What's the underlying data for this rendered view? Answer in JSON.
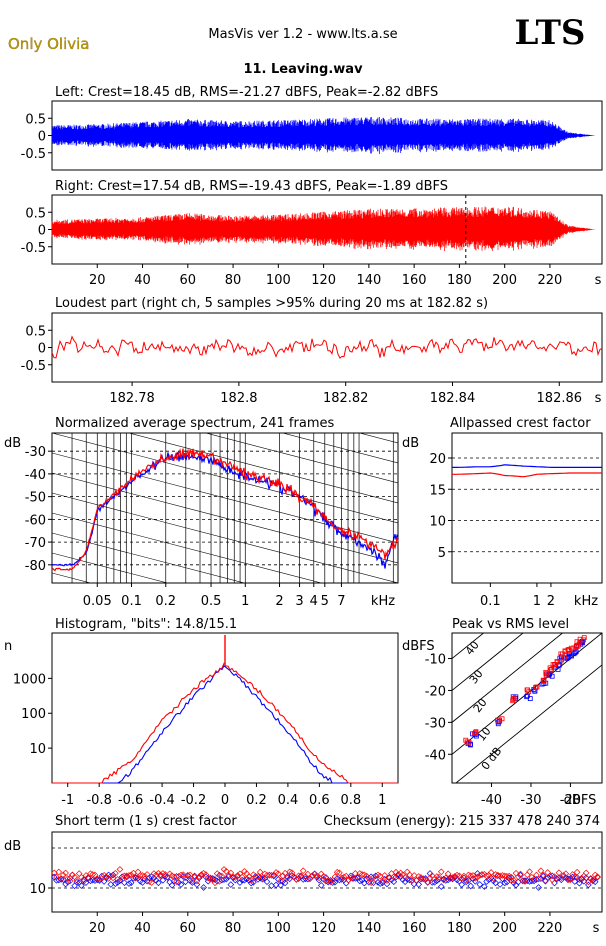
{
  "header": {
    "artist": "Only Olivia",
    "app_title": "MasVis ver 1.2 - www.lts.a.se",
    "logo": "LTS",
    "filename": "11. Leaving.wav"
  },
  "colors": {
    "left": "#0000ff",
    "right": "#ff0000",
    "artist": "#c0a000",
    "grid": "#000000"
  },
  "panels": {
    "left_wave": {
      "title": "Left: Crest=18.45 dB, RMS=-21.27 dBFS, Peak=-2.82 dBFS",
      "yticks": [
        "0.5",
        "0",
        "-0.5"
      ]
    },
    "right_wave": {
      "title": "Right: Crest=17.54 dB, RMS=-19.43 dBFS, Peak=-1.89 dBFS",
      "yticks": [
        "0.5",
        "0",
        "-0.5"
      ],
      "xticks": [
        "20",
        "40",
        "60",
        "80",
        "100",
        "120",
        "140",
        "160",
        "180",
        "200",
        "220"
      ],
      "xunit": "s"
    },
    "loudest": {
      "title": "Loudest part (right ch, 5 samples >95% during 20 ms at 182.82 s)",
      "yticks": [
        "0.5",
        "0",
        "-0.5"
      ],
      "xticks": [
        "182.78",
        "182.8",
        "182.82",
        "182.84",
        "182.86"
      ],
      "xunit": "s"
    },
    "spectrum": {
      "title": "Normalized average spectrum, 241 frames",
      "yunit": "dB",
      "yticks": [
        "-30",
        "-40",
        "-50",
        "-60",
        "-70",
        "-80"
      ],
      "xticks": [
        "0.05",
        "0.1",
        "0.2",
        "0.5",
        "1",
        "2",
        "3",
        "4",
        "5",
        "7"
      ],
      "xunit": "kHz"
    },
    "allpass": {
      "title": "Allpassed crest factor",
      "yunit": "dB",
      "yticks": [
        "20",
        "15",
        "10",
        "5"
      ],
      "xticks": [
        "0.1",
        "1",
        "2"
      ],
      "xunit": "kHz"
    },
    "histogram": {
      "title": "Histogram, \"bits\": 14.8/15.1",
      "yunit": "n",
      "yticks": [
        "1000",
        "100",
        "10"
      ],
      "xticks": [
        "-1",
        "-0.8",
        "-0.6",
        "-0.4",
        "-0.2",
        "0",
        "0.2",
        "0.4",
        "0.6",
        "0.8",
        "1"
      ]
    },
    "peakrms": {
      "title": "Peak vs RMS level",
      "yunit": "dBFS",
      "yticks": [
        "-10",
        "-20",
        "-30",
        "-40"
      ],
      "xticks": [
        "-40",
        "-30",
        "-20"
      ],
      "xunit": "dBFS",
      "diag_labels": [
        "40",
        "30",
        "20",
        "10",
        "0 dB"
      ]
    },
    "shortcrest": {
      "title": "Short term (1 s) crest factor",
      "checksum": "Checksum (energy):   215 337 478 240 374",
      "yunit": "dB",
      "yticks": [
        "10"
      ],
      "xticks": [
        "20",
        "40",
        "60",
        "80",
        "100",
        "120",
        "140",
        "160",
        "180",
        "200",
        "220"
      ],
      "xunit": "s"
    }
  },
  "chart_data": [
    {
      "type": "area",
      "title": "Left: Crest=18.45 dB, RMS=-21.27 dBFS, Peak=-2.82 dBFS",
      "x": [
        0,
        20,
        40,
        60,
        80,
        100,
        120,
        140,
        160,
        180,
        200,
        220,
        228,
        240
      ],
      "envelope": [
        0.3,
        0.33,
        0.4,
        0.48,
        0.42,
        0.45,
        0.5,
        0.55,
        0.5,
        0.48,
        0.5,
        0.45,
        0.1,
        0
      ],
      "ylim": [
        -1,
        1
      ],
      "xlim": [
        0,
        243
      ]
    },
    {
      "type": "area",
      "title": "Right: Crest=17.54 dB, RMS=-19.43 dBFS, Peak=-1.89 dBFS",
      "x": [
        0,
        20,
        40,
        60,
        80,
        100,
        120,
        140,
        160,
        180,
        200,
        220,
        228,
        240
      ],
      "envelope": [
        0.28,
        0.32,
        0.36,
        0.48,
        0.4,
        0.44,
        0.52,
        0.6,
        0.62,
        0.65,
        0.68,
        0.55,
        0.12,
        0
      ],
      "marker_x": 182.82,
      "ylim": [
        -1,
        1
      ],
      "xlim": [
        0,
        243
      ]
    },
    {
      "type": "line",
      "title": "Loudest part (right ch, 5 samples >95% during 20 ms at 182.82 s)",
      "xlim": [
        182.765,
        182.868
      ],
      "ylim": [
        -1,
        1
      ],
      "typical_amplitude": 0.3
    },
    {
      "type": "line",
      "title": "Normalized average spectrum, 241 frames",
      "x": [
        0.03,
        0.04,
        0.05,
        0.07,
        0.1,
        0.15,
        0.2,
        0.3,
        0.5,
        0.7,
        1,
        1.5,
        2,
        3,
        4,
        5,
        7,
        10,
        14,
        17,
        20
      ],
      "series": [
        {
          "name": "left",
          "values": [
            -80,
            -75,
            -56,
            -50,
            -43,
            -37,
            -33,
            -32,
            -34,
            -38,
            -41,
            -43,
            -46,
            -50,
            -55,
            -60,
            -66,
            -70,
            -75,
            -80,
            -68
          ]
        },
        {
          "name": "right",
          "values": [
            -82,
            -74,
            -55,
            -49,
            -42,
            -36,
            -33,
            -31,
            -33,
            -36,
            -40,
            -42,
            -45,
            -50,
            -54,
            -59,
            -65,
            -68,
            -72,
            -76,
            -70
          ]
        }
      ],
      "xlim": [
        0.02,
        22
      ],
      "ylim": [
        -88,
        -22
      ],
      "xscale": "log"
    },
    {
      "type": "line",
      "title": "Allpassed crest factor",
      "x": [
        0.02,
        0.05,
        0.1,
        0.2,
        0.5,
        1,
        2,
        5,
        10,
        20
      ],
      "series": [
        {
          "name": "left",
          "values": [
            18.5,
            18.6,
            18.6,
            18.9,
            18.7,
            18.6,
            18.5,
            18.5,
            18.5,
            18.5
          ]
        },
        {
          "name": "right",
          "values": [
            17.4,
            17.5,
            17.6,
            17.2,
            17.0,
            17.4,
            17.5,
            17.6,
            17.6,
            17.6
          ]
        }
      ],
      "xlim": [
        0.015,
        25
      ],
      "ylim": [
        0,
        24
      ],
      "xscale": "log"
    },
    {
      "type": "line",
      "title": "Histogram, \"bits\": 14.8/15.1",
      "x": [
        -1,
        -0.8,
        -0.6,
        -0.4,
        -0.2,
        0,
        0.2,
        0.4,
        0.6,
        0.8,
        1
      ],
      "series": [
        {
          "name": "left",
          "values": [
            0,
            0,
            2,
            30,
            300,
            2500,
            300,
            30,
            2,
            0,
            0
          ]
        },
        {
          "name": "right",
          "values": [
            0,
            1,
            4,
            60,
            500,
            2500,
            500,
            60,
            4,
            1,
            0
          ]
        }
      ],
      "xlim": [
        -1.1,
        1.1
      ],
      "ylim": [
        1,
        20000
      ],
      "yscale": "log"
    },
    {
      "type": "scatter",
      "title": "Peak vs RMS level",
      "x": [
        -46,
        -44,
        -38,
        -34,
        -31,
        -29,
        -27,
        -26,
        -25,
        -24,
        -23,
        -22,
        -21,
        -20,
        -19,
        -18,
        -17
      ],
      "series": [
        {
          "name": "left",
          "values": [
            -37,
            -34,
            -30,
            -22,
            -22,
            -20,
            -18,
            -15,
            -15,
            -13,
            -12,
            -10,
            -10,
            -9,
            -8,
            -6,
            -5
          ]
        },
        {
          "name": "right",
          "values": [
            -36,
            -33,
            -29,
            -23,
            -20,
            -19,
            -17,
            -15,
            -13,
            -12,
            -11,
            -9,
            -8,
            -7,
            -6,
            -5,
            -4
          ]
        }
      ],
      "xlim": [
        -50,
        -12
      ],
      "ylim": [
        -49,
        -2
      ]
    },
    {
      "type": "scatter",
      "title": "Short term (1 s) crest factor",
      "xlim": [
        0,
        243
      ],
      "ylim": [
        7,
        17
      ],
      "typical_value": 11,
      "series": [
        {
          "name": "left",
          "mean": 11
        },
        {
          "name": "right",
          "mean": 11.5
        }
      ]
    }
  ]
}
